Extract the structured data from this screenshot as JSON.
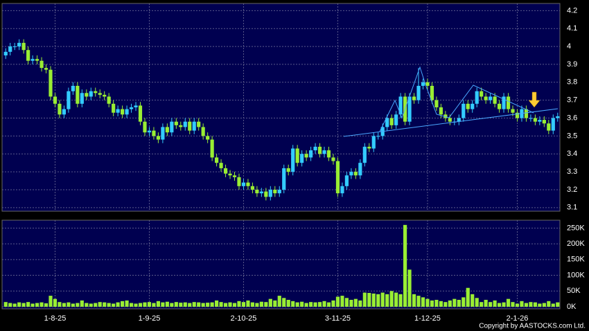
{
  "chart_data": {
    "type": "candlestick",
    "categories": [
      null,
      null,
      null,
      null,
      null,
      null,
      null,
      null,
      null,
      null,
      null,
      "1-8-25",
      null,
      null,
      null,
      null,
      null,
      null,
      null,
      null,
      null,
      null,
      null,
      null,
      null,
      null,
      null,
      null,
      null,
      null,
      null,
      null,
      "1-9-25",
      null,
      null,
      null,
      null,
      null,
      null,
      null,
      null,
      null,
      null,
      null,
      null,
      null,
      null,
      null,
      null,
      null,
      null,
      null,
      null,
      "2-10-25",
      null,
      null,
      null,
      null,
      null,
      null,
      null,
      null,
      null,
      null,
      null,
      null,
      null,
      null,
      null,
      null,
      null,
      null,
      null,
      null,
      "3-11-25",
      null,
      null,
      null,
      null,
      null,
      null,
      null,
      null,
      null,
      null,
      null,
      null,
      null,
      null,
      null,
      null,
      null,
      null,
      null,
      "1-12-25",
      null,
      null,
      null,
      null,
      null,
      null,
      null,
      null,
      null,
      null,
      null,
      null,
      null,
      null,
      null,
      null,
      null,
      null,
      null,
      "2-1-26",
      null,
      null,
      null,
      null,
      null,
      null,
      null,
      null,
      null
    ],
    "open": [
      3.95,
      3.97,
      4.0,
      4.0,
      4.02,
      3.98,
      3.92,
      3.93,
      3.92,
      3.88,
      3.87,
      3.72,
      3.68,
      3.62,
      3.65,
      3.75,
      3.78,
      3.68,
      3.74,
      3.72,
      3.75,
      3.74,
      3.73,
      3.72,
      3.68,
      3.63,
      3.65,
      3.62,
      3.65,
      3.66,
      3.67,
      3.58,
      3.52,
      3.53,
      3.5,
      3.48,
      3.55,
      3.52,
      3.58,
      3.56,
      3.55,
      3.58,
      3.53,
      3.58,
      3.55,
      3.5,
      3.48,
      3.38,
      3.35,
      3.32,
      3.29,
      3.28,
      3.27,
      3.22,
      3.24,
      3.22,
      3.2,
      3.18,
      3.19,
      3.16,
      3.2,
      3.18,
      3.2,
      3.32,
      3.3,
      3.43,
      3.35,
      3.4,
      3.38,
      3.42,
      3.44,
      3.4,
      3.42,
      3.38,
      3.36,
      3.18,
      3.22,
      3.28,
      3.3,
      3.28,
      3.35,
      3.44,
      3.43,
      3.5,
      3.5,
      3.55,
      3.6,
      3.56,
      3.62,
      3.72,
      3.58,
      3.72,
      3.7,
      3.78,
      3.8,
      3.78,
      3.7,
      3.66,
      3.62,
      3.6,
      3.58,
      3.58,
      3.6,
      3.68,
      3.65,
      3.68,
      3.75,
      3.72,
      3.7,
      3.72,
      3.68,
      3.65,
      3.72,
      3.65,
      3.63,
      3.6,
      3.65,
      3.6,
      3.6,
      3.58,
      3.59,
      3.57,
      3.53,
      3.6
    ],
    "high": [
      3.99,
      4.02,
      4.02,
      4.04,
      4.04,
      4.0,
      3.95,
      3.95,
      3.94,
      3.9,
      3.89,
      3.74,
      3.7,
      3.67,
      3.77,
      3.8,
      3.8,
      3.76,
      3.76,
      3.77,
      3.77,
      3.76,
      3.75,
      3.74,
      3.7,
      3.67,
      3.67,
      3.67,
      3.68,
      3.69,
      3.69,
      3.6,
      3.55,
      3.55,
      3.52,
      3.57,
      3.57,
      3.6,
      3.6,
      3.58,
      3.6,
      3.6,
      3.6,
      3.6,
      3.57,
      3.52,
      3.5,
      3.4,
      3.37,
      3.34,
      3.31,
      3.3,
      3.29,
      3.26,
      3.26,
      3.24,
      3.22,
      3.21,
      3.21,
      3.22,
      3.22,
      3.22,
      3.34,
      3.34,
      3.45,
      3.45,
      3.42,
      3.42,
      3.44,
      3.46,
      3.46,
      3.44,
      3.44,
      3.4,
      3.38,
      3.24,
      3.3,
      3.32,
      3.32,
      3.37,
      3.46,
      3.46,
      3.52,
      3.52,
      3.57,
      3.62,
      3.62,
      3.64,
      3.74,
      3.74,
      3.74,
      3.74,
      3.88,
      3.82,
      3.82,
      3.8,
      3.72,
      3.68,
      3.64,
      3.62,
      3.6,
      3.62,
      3.7,
      3.7,
      3.7,
      3.77,
      3.77,
      3.74,
      3.74,
      3.74,
      3.7,
      3.74,
      3.74,
      3.67,
      3.65,
      3.67,
      3.67,
      3.62,
      3.62,
      3.61,
      3.61,
      3.59,
      3.62,
      3.63
    ],
    "low": [
      3.93,
      3.95,
      3.98,
      3.98,
      3.96,
      3.9,
      3.9,
      3.9,
      3.86,
      3.85,
      3.7,
      3.66,
      3.6,
      3.6,
      3.63,
      3.73,
      3.66,
      3.66,
      3.7,
      3.7,
      3.72,
      3.71,
      3.7,
      3.66,
      3.61,
      3.61,
      3.6,
      3.6,
      3.63,
      3.64,
      3.56,
      3.5,
      3.5,
      3.48,
      3.46,
      3.46,
      3.5,
      3.5,
      3.54,
      3.53,
      3.53,
      3.51,
      3.51,
      3.53,
      3.48,
      3.46,
      3.36,
      3.33,
      3.3,
      3.27,
      3.26,
      3.25,
      3.2,
      3.2,
      3.2,
      3.18,
      3.16,
      3.16,
      3.14,
      3.14,
      3.16,
      3.16,
      3.18,
      3.28,
      3.28,
      3.33,
      3.33,
      3.36,
      3.36,
      3.4,
      3.38,
      3.38,
      3.36,
      3.34,
      3.16,
      3.16,
      3.2,
      3.26,
      3.26,
      3.26,
      3.33,
      3.41,
      3.41,
      3.48,
      3.48,
      3.53,
      3.54,
      3.54,
      3.6,
      3.56,
      3.56,
      3.68,
      3.68,
      3.76,
      3.76,
      3.68,
      3.64,
      3.6,
      3.58,
      3.56,
      3.56,
      3.56,
      3.58,
      3.63,
      3.63,
      3.66,
      3.7,
      3.68,
      3.68,
      3.66,
      3.63,
      3.63,
      3.63,
      3.61,
      3.58,
      3.58,
      3.58,
      3.58,
      3.56,
      3.56,
      3.55,
      3.51,
      3.51,
      3.58
    ],
    "close": [
      3.97,
      4.0,
      4.0,
      4.02,
      3.98,
      3.92,
      3.93,
      3.92,
      3.88,
      3.87,
      3.72,
      3.68,
      3.62,
      3.65,
      3.75,
      3.78,
      3.68,
      3.74,
      3.72,
      3.75,
      3.74,
      3.73,
      3.72,
      3.68,
      3.63,
      3.65,
      3.62,
      3.65,
      3.66,
      3.67,
      3.58,
      3.52,
      3.53,
      3.5,
      3.48,
      3.55,
      3.52,
      3.58,
      3.56,
      3.55,
      3.58,
      3.53,
      3.58,
      3.55,
      3.5,
      3.48,
      3.38,
      3.35,
      3.32,
      3.29,
      3.28,
      3.27,
      3.22,
      3.24,
      3.22,
      3.2,
      3.18,
      3.19,
      3.16,
      3.2,
      3.18,
      3.2,
      3.32,
      3.3,
      3.43,
      3.35,
      3.4,
      3.38,
      3.42,
      3.44,
      3.4,
      3.42,
      3.38,
      3.36,
      3.18,
      3.22,
      3.28,
      3.3,
      3.28,
      3.35,
      3.44,
      3.43,
      3.5,
      3.5,
      3.55,
      3.6,
      3.56,
      3.62,
      3.72,
      3.58,
      3.72,
      3.7,
      3.78,
      3.8,
      3.78,
      3.7,
      3.66,
      3.62,
      3.6,
      3.58,
      3.58,
      3.6,
      3.68,
      3.65,
      3.68,
      3.75,
      3.72,
      3.7,
      3.72,
      3.68,
      3.65,
      3.72,
      3.65,
      3.63,
      3.6,
      3.65,
      3.6,
      3.6,
      3.58,
      3.59,
      3.57,
      3.53,
      3.6,
      3.61
    ],
    "volume": [
      15000,
      12000,
      10000,
      14000,
      12000,
      15000,
      10000,
      12000,
      14000,
      11000,
      35000,
      25000,
      15000,
      12000,
      14000,
      10000,
      12000,
      20000,
      12000,
      10000,
      12000,
      15000,
      14000,
      12000,
      10000,
      14000,
      18000,
      20000,
      12000,
      10000,
      12000,
      14000,
      15000,
      12000,
      18000,
      14000,
      16000,
      12000,
      15000,
      13000,
      14000,
      12000,
      15000,
      14000,
      12000,
      13000,
      14000,
      20000,
      15000,
      12000,
      14000,
      12000,
      18000,
      15000,
      20000,
      14000,
      12000,
      16000,
      15000,
      25000,
      20000,
      35000,
      28000,
      22000,
      18000,
      14000,
      16000,
      12000,
      15000,
      14000,
      15000,
      18000,
      14000,
      20000,
      32000,
      35000,
      28000,
      22000,
      25000,
      20000,
      45000,
      44000,
      42000,
      40000,
      45000,
      40000,
      50000,
      45000,
      40000,
      260000,
      118000,
      40000,
      35000,
      30000,
      25000,
      20000,
      22000,
      18000,
      15000,
      20000,
      25000,
      22000,
      30000,
      60000,
      40000,
      28000,
      15000,
      22000,
      15000,
      20000,
      12000,
      14000,
      25000,
      15000,
      10000,
      18000,
      12000,
      15000,
      14000,
      10000,
      12000,
      18000,
      10000,
      14000
    ],
    "up_color": "#33ccff",
    "down_color": "#99ee33",
    "volume_color": "#99ee33",
    "ylim": [
      3.08,
      4.24
    ],
    "yticks": [
      3.1,
      3.2,
      3.3,
      3.4,
      3.5,
      3.6,
      3.7,
      3.8,
      3.9,
      4,
      4.1,
      4.2
    ],
    "volume_ylim": [
      0,
      275000
    ],
    "volume_ticks": [
      {
        "value": 0,
        "label": "0K"
      },
      {
        "value": 50000,
        "label": "50K"
      },
      {
        "value": 100000,
        "label": "100K"
      },
      {
        "value": 150000,
        "label": "150K"
      },
      {
        "value": 200000,
        "label": "200K"
      },
      {
        "value": 250000,
        "label": "250K"
      }
    ],
    "grid": true,
    "copyright": "Copyright by AASTOCKS.com Ltd."
  }
}
